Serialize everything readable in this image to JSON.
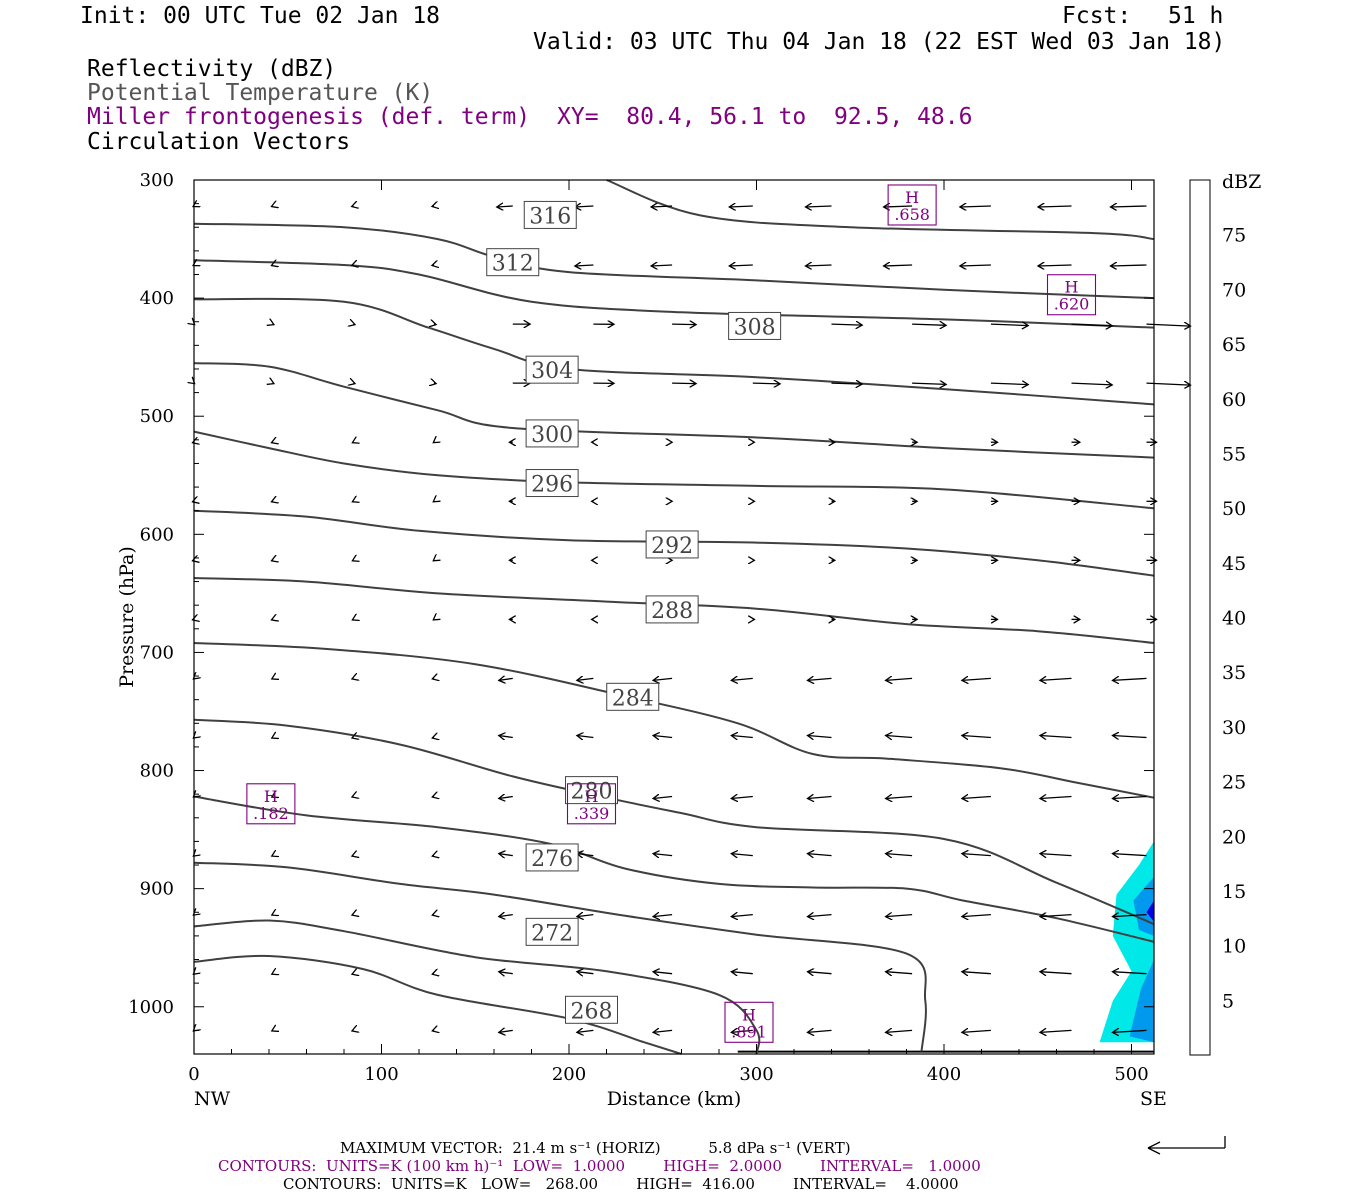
{
  "header": {
    "init": "Init: 00 UTC Tue 02 Jan 18",
    "fcst_label": "Fcst:",
    "fcst_value": "51 h",
    "valid": "Valid: 03 UTC Thu 04 Jan 18 (22 EST Wed 03 Jan 18)"
  },
  "fields": {
    "reflectivity": "Reflectivity (dBZ)",
    "theta": "Potential Temperature (K)",
    "frontogenesis": "Miller frontogenesis (def. term)",
    "xy": "XY=  80.4, 56.1 to  92.5, 48.6",
    "vectors": "Circulation Vectors"
  },
  "colors": {
    "contour": "#404040",
    "purple": "#800080",
    "refl_fill_5": "#00e8e8",
    "refl_fill_10": "#0099ee",
    "refl_fill_15": "#0000e0"
  },
  "chart_data": {
    "type": "cross-section",
    "xlabel": "Distance (km)",
    "ylabel": "Pressure (hPa)",
    "x_ticks": [
      0,
      100,
      200,
      300,
      400,
      500
    ],
    "y_ticks": [
      300,
      400,
      500,
      600,
      700,
      800,
      900,
      1000
    ],
    "xlim": [
      0,
      512
    ],
    "ylim": [
      300,
      1040
    ],
    "end_labels": {
      "left": "NW",
      "right": "SE"
    },
    "theta_contours": [
      {
        "level": "316",
        "label_at": [
          190,
          330
        ],
        "points": [
          [
            220,
            300
          ],
          [
            270,
            330
          ],
          [
            350,
            340
          ],
          [
            480,
            345
          ],
          [
            512,
            350
          ]
        ]
      },
      {
        "level": "312",
        "label_at": [
          170,
          370
        ],
        "points": [
          [
            0,
            337
          ],
          [
            80,
            340
          ],
          [
            130,
            350
          ],
          [
            160,
            365
          ],
          [
            200,
            378
          ],
          [
            300,
            385
          ],
          [
            400,
            393
          ],
          [
            512,
            400
          ]
        ]
      },
      {
        "level": "308",
        "label_at": [
          299,
          424
        ],
        "points": [
          [
            0,
            368
          ],
          [
            80,
            372
          ],
          [
            120,
            380
          ],
          [
            180,
            403
          ],
          [
            260,
            412
          ],
          [
            400,
            418
          ],
          [
            512,
            425
          ]
        ]
      },
      {
        "level": "304",
        "label_at": [
          191,
          461
        ],
        "points": [
          [
            0,
            401
          ],
          [
            80,
            403
          ],
          [
            125,
            425
          ],
          [
            160,
            443
          ],
          [
            200,
            460
          ],
          [
            300,
            467
          ],
          [
            400,
            477
          ],
          [
            512,
            490
          ]
        ]
      },
      {
        "level": "300",
        "label_at": [
          191,
          515
        ],
        "points": [
          [
            0,
            455
          ],
          [
            40,
            458
          ],
          [
            80,
            475
          ],
          [
            130,
            495
          ],
          [
            170,
            510
          ],
          [
            300,
            518
          ],
          [
            400,
            527
          ],
          [
            512,
            535
          ]
        ]
      },
      {
        "level": "296",
        "label_at": [
          191,
          557
        ],
        "points": [
          [
            0,
            513
          ],
          [
            40,
            527
          ],
          [
            80,
            540
          ],
          [
            130,
            550
          ],
          [
            200,
            556
          ],
          [
            300,
            559
          ],
          [
            400,
            562
          ],
          [
            512,
            578
          ]
        ]
      },
      {
        "level": "292",
        "label_at": [
          255,
          609
        ],
        "points": [
          [
            0,
            580
          ],
          [
            60,
            585
          ],
          [
            120,
            597
          ],
          [
            200,
            605
          ],
          [
            300,
            607
          ],
          [
            380,
            612
          ],
          [
            450,
            622
          ],
          [
            512,
            635
          ]
        ]
      },
      {
        "level": "288",
        "label_at": [
          255,
          664
        ],
        "points": [
          [
            0,
            637
          ],
          [
            60,
            640
          ],
          [
            130,
            650
          ],
          [
            220,
            657
          ],
          [
            300,
            663
          ],
          [
            380,
            676
          ],
          [
            450,
            682
          ],
          [
            512,
            692
          ]
        ]
      },
      {
        "level": "284",
        "label_at": [
          234,
          738
        ],
        "points": [
          [
            0,
            692
          ],
          [
            70,
            697
          ],
          [
            150,
            710
          ],
          [
            230,
            737
          ],
          [
            290,
            760
          ],
          [
            330,
            786
          ],
          [
            370,
            790
          ],
          [
            430,
            798
          ],
          [
            470,
            810
          ],
          [
            512,
            823
          ]
        ]
      },
      {
        "level": "280",
        "label_at": [
          212,
          817
        ],
        "points": [
          [
            0,
            757
          ],
          [
            50,
            762
          ],
          [
            110,
            778
          ],
          [
            170,
            805
          ],
          [
            220,
            823
          ],
          [
            260,
            836
          ],
          [
            300,
            848
          ],
          [
            400,
            858
          ],
          [
            460,
            895
          ],
          [
            512,
            930
          ]
        ]
      },
      {
        "level": "276",
        "label_at": [
          191,
          874
        ],
        "points": [
          [
            0,
            822
          ],
          [
            60,
            838
          ],
          [
            130,
            848
          ],
          [
            190,
            862
          ],
          [
            230,
            883
          ],
          [
            280,
            896
          ],
          [
            330,
            899
          ],
          [
            380,
            900
          ],
          [
            410,
            910
          ],
          [
            460,
            925
          ],
          [
            512,
            945
          ]
        ]
      },
      {
        "level": "272",
        "label_at": [
          191,
          937
        ],
        "points": [
          [
            0,
            878
          ],
          [
            50,
            882
          ],
          [
            110,
            896
          ],
          [
            160,
            905
          ],
          [
            230,
            923
          ],
          [
            300,
            939
          ],
          [
            380,
            955
          ],
          [
            390,
            995
          ],
          [
            388,
            1038
          ]
        ]
      },
      {
        "level": "268",
        "label_at": [
          212,
          1003
        ],
        "points": [
          [
            0,
            932
          ],
          [
            40,
            927
          ],
          [
            80,
            936
          ],
          [
            150,
            958
          ],
          [
            220,
            970
          ],
          [
            280,
            990
          ],
          [
            300,
            1020
          ],
          [
            300,
            1040
          ]
        ]
      },
      {
        "level": "",
        "label_at": null,
        "points": [
          [
            0,
            962
          ],
          [
            40,
            957
          ],
          [
            90,
            968
          ],
          [
            130,
            990
          ],
          [
            200,
            1010
          ],
          [
            240,
            1030
          ],
          [
            260,
            1040
          ]
        ]
      }
    ],
    "frontogenesis_maxima": [
      {
        "label": "H",
        "value": ".182",
        "x": 41,
        "p": 829
      },
      {
        "label": "H",
        "value": ".339",
        "x": 212,
        "p": 829
      },
      {
        "label": "H",
        "value": ".891",
        "x": 296,
        "p": 1014
      },
      {
        "label": "H",
        "value": ".620",
        "x": 468,
        "p": 398
      },
      {
        "label": "H",
        "value": ".658",
        "x": 383,
        "p": 322
      }
    ],
    "colorbar": {
      "title": "dBZ",
      "levels": [
        "5",
        "10",
        "15",
        "20",
        "25",
        "30",
        "35",
        "40",
        "45",
        "50",
        "55",
        "60",
        "65",
        "70",
        "75"
      ],
      "colors": [
        "#ffffff",
        "#00e8e8",
        "#0099ee",
        "#0000e0",
        "#00ee00",
        "#00c000",
        "#008000",
        "#ffff00",
        "#e6bf00",
        "#ff8c00",
        "#ff0000",
        "#d70000",
        "#bf0000",
        "#ff00ff",
        "#9966cc",
        "#ffffff"
      ]
    },
    "reflectivity_area": {
      "x_range": [
        485,
        512
      ],
      "p_range": [
        860,
        1038
      ],
      "max_dbz": "15"
    }
  },
  "footer": {
    "max_vector": "MAXIMUM VECTOR:  21.4 m s⁻¹ (HORIZ)          5.8 dPa s⁻¹ (VERT)",
    "contours1": "CONTOURS:  UNITS=K (100 km h)⁻¹  LOW=  1.0000        HIGH=  2.0000        INTERVAL=   1.0000",
    "contours2": "CONTOURS:  UNITS=K   LOW=   268.00        HIGH=  416.00        INTERVAL=    4.0000"
  }
}
